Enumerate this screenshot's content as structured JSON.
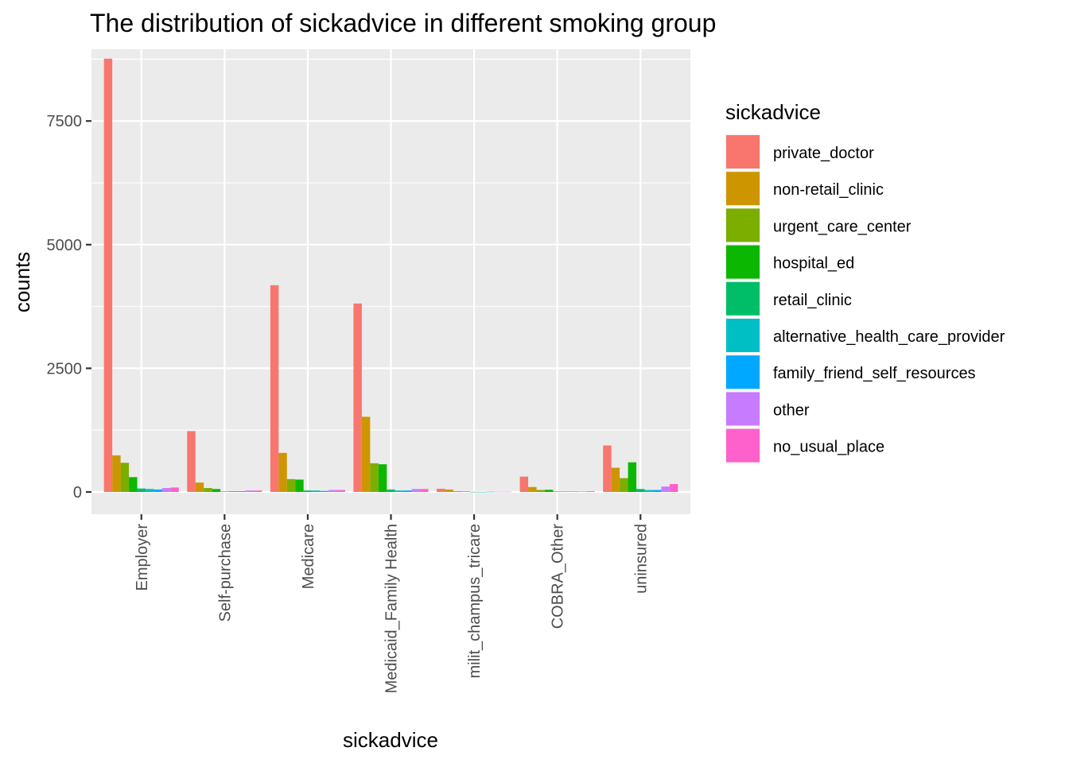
{
  "chart_data": {
    "type": "bar",
    "title": "The distribution of sickadvice in different smoking group",
    "xlabel": "sickadvice",
    "ylabel": "counts",
    "ylim": [
      -450,
      8950
    ],
    "yticks": [
      0,
      2500,
      5000,
      7500
    ],
    "grid": true,
    "legend": {
      "title": "sickadvice",
      "placement": "right"
    },
    "categories": [
      "Employer",
      "Self-purchase",
      "Medicare",
      "Medicaid_Family Health",
      "milit_champus_tricare",
      "COBRA_Other",
      "uninsured"
    ],
    "series": [
      {
        "name": "private_doctor",
        "color": "#F8766D",
        "values": [
          8760,
          1230,
          4180,
          3810,
          65,
          310,
          940
        ]
      },
      {
        "name": "non-retail_clinic",
        "color": "#CD9600",
        "values": [
          740,
          190,
          790,
          1520,
          50,
          100,
          490
        ]
      },
      {
        "name": "urgent_care_center",
        "color": "#7CAE00",
        "values": [
          590,
          80,
          260,
          580,
          15,
          40,
          280
        ]
      },
      {
        "name": "hospital_ed",
        "color": "#0CB702",
        "values": [
          300,
          60,
          250,
          560,
          10,
          45,
          600
        ]
      },
      {
        "name": "retail_clinic",
        "color": "#00BE67",
        "values": [
          70,
          10,
          30,
          50,
          2,
          10,
          60
        ]
      },
      {
        "name": "alternative_health_care_provider",
        "color": "#00BFC4",
        "values": [
          60,
          15,
          30,
          30,
          2,
          10,
          40
        ]
      },
      {
        "name": "family_friend_self_resources",
        "color": "#00A9FF",
        "values": [
          50,
          15,
          20,
          30,
          5,
          10,
          40
        ]
      },
      {
        "name": "other",
        "color": "#C77CFF",
        "values": [
          80,
          30,
          40,
          60,
          5,
          10,
          110
        ]
      },
      {
        "name": "no_usual_place",
        "color": "#FF61CC",
        "values": [
          90,
          30,
          40,
          60,
          5,
          15,
          160
        ]
      }
    ]
  }
}
